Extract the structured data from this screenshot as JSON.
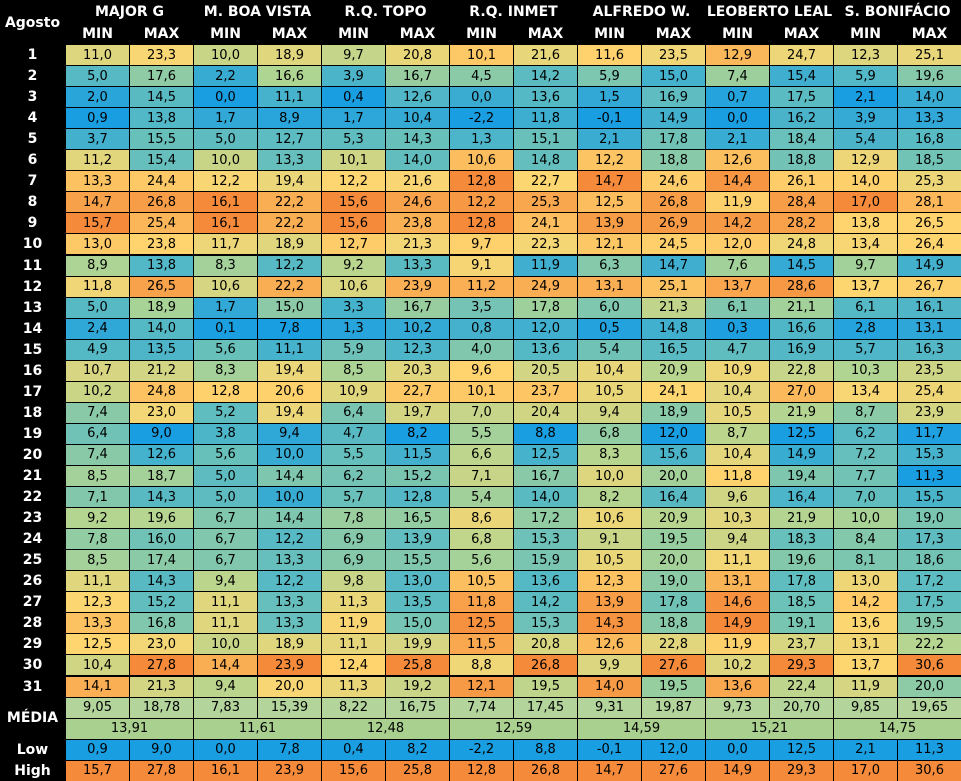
{
  "table": {
    "corner": "Agosto",
    "stations": [
      "MAJOR G",
      "M. BOA VISTA",
      "R.Q. TOPO",
      "R.Q. INMET",
      "ALFREDO W.",
      "LEOBERTO LEAL",
      "S. BONIFÁCIO"
    ],
    "subcolumns": [
      "MIN",
      "MAX"
    ],
    "rows": [
      {
        "day": "1",
        "cells": [
          "11,0",
          "23,3",
          "10,0",
          "18,9",
          "9,7",
          "20,8",
          "10,1",
          "21,6",
          "11,6",
          "23,5",
          "12,9",
          "24,7",
          "12,3",
          "25,1"
        ]
      },
      {
        "day": "2",
        "cells": [
          "5,0",
          "17,6",
          "2,2",
          "16,6",
          "3,9",
          "16,7",
          "4,5",
          "14,2",
          "5,9",
          "15,0",
          "7,4",
          "15,4",
          "5,9",
          "19,6"
        ]
      },
      {
        "day": "3",
        "cells": [
          "2,0",
          "14,5",
          "0,0",
          "11,1",
          "0,4",
          "12,6",
          "0,0",
          "13,6",
          "1,5",
          "16,9",
          "0,7",
          "17,5",
          "2,1",
          "14,0"
        ]
      },
      {
        "day": "4",
        "cells": [
          "0,9",
          "13,8",
          "1,7",
          "8,9",
          "1,7",
          "10,4",
          "-2,2",
          "11,8",
          "-0,1",
          "14,9",
          "0,0",
          "16,2",
          "3,9",
          "13,3"
        ]
      },
      {
        "day": "5",
        "cells": [
          "3,7",
          "15,5",
          "5,0",
          "12,7",
          "5,3",
          "14,3",
          "1,3",
          "15,1",
          "2,1",
          "17,8",
          "2,1",
          "18,4",
          "5,4",
          "16,8"
        ]
      },
      {
        "day": "6",
        "cells": [
          "11,2",
          "15,4",
          "10,0",
          "13,3",
          "10,1",
          "14,0",
          "10,6",
          "14,8",
          "12,2",
          "18,8",
          "12,6",
          "18,8",
          "12,9",
          "18,5"
        ]
      },
      {
        "day": "7",
        "cells": [
          "13,3",
          "24,4",
          "12,2",
          "19,4",
          "12,2",
          "21,6",
          "12,8",
          "22,7",
          "14,7",
          "24,6",
          "14,4",
          "26,1",
          "14,0",
          "25,3"
        ]
      },
      {
        "day": "8",
        "cells": [
          "14,7",
          "26,8",
          "16,1",
          "22,2",
          "15,6",
          "24,6",
          "12,2",
          "25,3",
          "12,5",
          "26,8",
          "11,9",
          "28,4",
          "17,0",
          "28,1"
        ]
      },
      {
        "day": "9",
        "cells": [
          "15,7",
          "25,4",
          "16,1",
          "22,2",
          "15,6",
          "23,8",
          "12,8",
          "24,1",
          "13,9",
          "26,9",
          "14,2",
          "28,2",
          "13,8",
          "26,5"
        ]
      },
      {
        "day": "10",
        "cells": [
          "13,0",
          "23,8",
          "11,7",
          "18,9",
          "12,7",
          "21,3",
          "9,7",
          "22,3",
          "12,1",
          "24,5",
          "12,0",
          "24,8",
          "13,4",
          "26,4"
        ]
      },
      {
        "day": "11",
        "cells": [
          "8,9",
          "13,8",
          "8,3",
          "12,2",
          "9,2",
          "13,3",
          "9,1",
          "11,9",
          "6,3",
          "14,7",
          "7,6",
          "14,5",
          "9,7",
          "14,9"
        ]
      },
      {
        "day": "12",
        "cells": [
          "11,8",
          "26,5",
          "10,6",
          "22,2",
          "10,6",
          "23,9",
          "11,2",
          "24,9",
          "13,1",
          "25,1",
          "13,7",
          "28,6",
          "13,7",
          "26,7"
        ]
      },
      {
        "day": "13",
        "cells": [
          "5,0",
          "18,9",
          "1,7",
          "15,0",
          "3,3",
          "16,7",
          "3,5",
          "17,8",
          "6,0",
          "21,3",
          "6,1",
          "21,1",
          "6,1",
          "16,1"
        ]
      },
      {
        "day": "14",
        "cells": [
          "2,4",
          "14,0",
          "0,1",
          "7,8",
          "1,3",
          "10,2",
          "0,8",
          "12,0",
          "0,5",
          "14,8",
          "0,3",
          "16,6",
          "2,8",
          "13,1"
        ]
      },
      {
        "day": "15",
        "cells": [
          "4,9",
          "13,5",
          "5,6",
          "11,1",
          "5,9",
          "12,3",
          "4,0",
          "13,6",
          "5,4",
          "16,5",
          "4,7",
          "16,9",
          "5,7",
          "16,3"
        ]
      },
      {
        "day": "16",
        "cells": [
          "10,7",
          "21,2",
          "8,3",
          "19,4",
          "8,5",
          "20,3",
          "9,6",
          "20,5",
          "10,4",
          "20,9",
          "10,9",
          "22,8",
          "10,3",
          "23,5"
        ]
      },
      {
        "day": "17",
        "cells": [
          "10,2",
          "24,8",
          "12,8",
          "20,6",
          "10,9",
          "22,7",
          "10,1",
          "23,7",
          "10,5",
          "24,1",
          "10,4",
          "27,0",
          "13,4",
          "25,4"
        ]
      },
      {
        "day": "18",
        "cells": [
          "7,4",
          "23,0",
          "5,2",
          "19,4",
          "6,4",
          "19,7",
          "7,0",
          "20,4",
          "9,4",
          "18,9",
          "10,5",
          "21,9",
          "8,7",
          "23,9"
        ]
      },
      {
        "day": "19",
        "cells": [
          "6,4",
          "9,0",
          "3,8",
          "9,4",
          "4,7",
          "8,2",
          "5,5",
          "8,8",
          "6,8",
          "12,0",
          "8,7",
          "12,5",
          "6,2",
          "11,7"
        ]
      },
      {
        "day": "20",
        "cells": [
          "7,4",
          "12,6",
          "5,6",
          "10,0",
          "5,5",
          "11,5",
          "6,6",
          "12,5",
          "8,3",
          "15,6",
          "10,4",
          "14,9",
          "7,2",
          "15,3"
        ]
      },
      {
        "day": "21",
        "cells": [
          "8,5",
          "18,7",
          "5,0",
          "14,4",
          "6,2",
          "15,2",
          "7,1",
          "16,7",
          "10,0",
          "20,0",
          "11,8",
          "19,4",
          "7,7",
          "11,3"
        ]
      },
      {
        "day": "22",
        "cells": [
          "7,1",
          "14,3",
          "5,0",
          "10,0",
          "5,7",
          "12,8",
          "5,4",
          "14,0",
          "8,2",
          "16,4",
          "9,6",
          "16,4",
          "7,0",
          "15,5"
        ]
      },
      {
        "day": "23",
        "cells": [
          "9,2",
          "19,6",
          "6,7",
          "14,4",
          "7,8",
          "16,5",
          "8,6",
          "17,2",
          "10,6",
          "20,9",
          "10,3",
          "21,9",
          "10,0",
          "19,0"
        ]
      },
      {
        "day": "24",
        "cells": [
          "7,8",
          "16,0",
          "6,7",
          "12,2",
          "6,9",
          "13,9",
          "6,8",
          "15,3",
          "9,1",
          "19,5",
          "9,4",
          "18,3",
          "8,4",
          "17,3"
        ]
      },
      {
        "day": "25",
        "cells": [
          "8,5",
          "17,4",
          "6,7",
          "13,3",
          "6,9",
          "15,5",
          "5,6",
          "15,9",
          "10,5",
          "20,0",
          "11,1",
          "19,6",
          "8,1",
          "18,6"
        ]
      },
      {
        "day": "26",
        "cells": [
          "11,1",
          "14,3",
          "9,4",
          "12,2",
          "9,8",
          "13,0",
          "10,5",
          "13,6",
          "12,3",
          "19,0",
          "13,1",
          "17,8",
          "13,0",
          "17,2"
        ]
      },
      {
        "day": "27",
        "cells": [
          "12,3",
          "15,2",
          "11,1",
          "13,3",
          "11,3",
          "13,5",
          "11,8",
          "14,2",
          "13,9",
          "17,8",
          "14,6",
          "18,5",
          "14,2",
          "17,5"
        ]
      },
      {
        "day": "28",
        "cells": [
          "13,3",
          "16,8",
          "11,1",
          "13,3",
          "11,9",
          "15,0",
          "12,5",
          "15,3",
          "14,3",
          "18,8",
          "14,9",
          "19,1",
          "13,6",
          "19,5"
        ]
      },
      {
        "day": "29",
        "cells": [
          "12,5",
          "23,0",
          "10,0",
          "18,9",
          "11,1",
          "19,9",
          "11,5",
          "20,8",
          "12,6",
          "22,8",
          "11,9",
          "23,7",
          "13,1",
          "22,2"
        ]
      },
      {
        "day": "30",
        "cells": [
          "10,4",
          "27,8",
          "14,4",
          "23,9",
          "12,4",
          "25,8",
          "8,8",
          "26,8",
          "9,9",
          "27,6",
          "10,2",
          "29,3",
          "13,7",
          "30,6"
        ]
      },
      {
        "day": "31",
        "cells": [
          "14,1",
          "21,3",
          "9,4",
          "20,0",
          "11,3",
          "19,2",
          "12,1",
          "19,5",
          "14,0",
          "19,5",
          "13,6",
          "22,4",
          "11,9",
          "20,0"
        ]
      }
    ],
    "summary": {
      "mean_label": "MÉDIA",
      "mean": [
        "9,05",
        "18,78",
        "7,83",
        "15,39",
        "8,22",
        "16,75",
        "7,74",
        "17,45",
        "9,31",
        "19,87",
        "9,73",
        "20,70",
        "9,85",
        "19,65"
      ],
      "combined": [
        "13,91",
        "11,61",
        "12,48",
        "12,59",
        "14,59",
        "15,21",
        "14,75"
      ],
      "low_label": "Low",
      "low": [
        "0,9",
        "9,0",
        "0,0",
        "7,8",
        "0,4",
        "8,2",
        "-2,2",
        "8,8",
        "-0,1",
        "12,0",
        "0,0",
        "12,5",
        "2,1",
        "11,3"
      ],
      "high_label": "High",
      "high": [
        "15,7",
        "27,8",
        "16,1",
        "23,9",
        "15,6",
        "25,8",
        "12,8",
        "26,8",
        "14,7",
        "27,6",
        "14,9",
        "29,3",
        "17,0",
        "30,6"
      ]
    }
  }
}
